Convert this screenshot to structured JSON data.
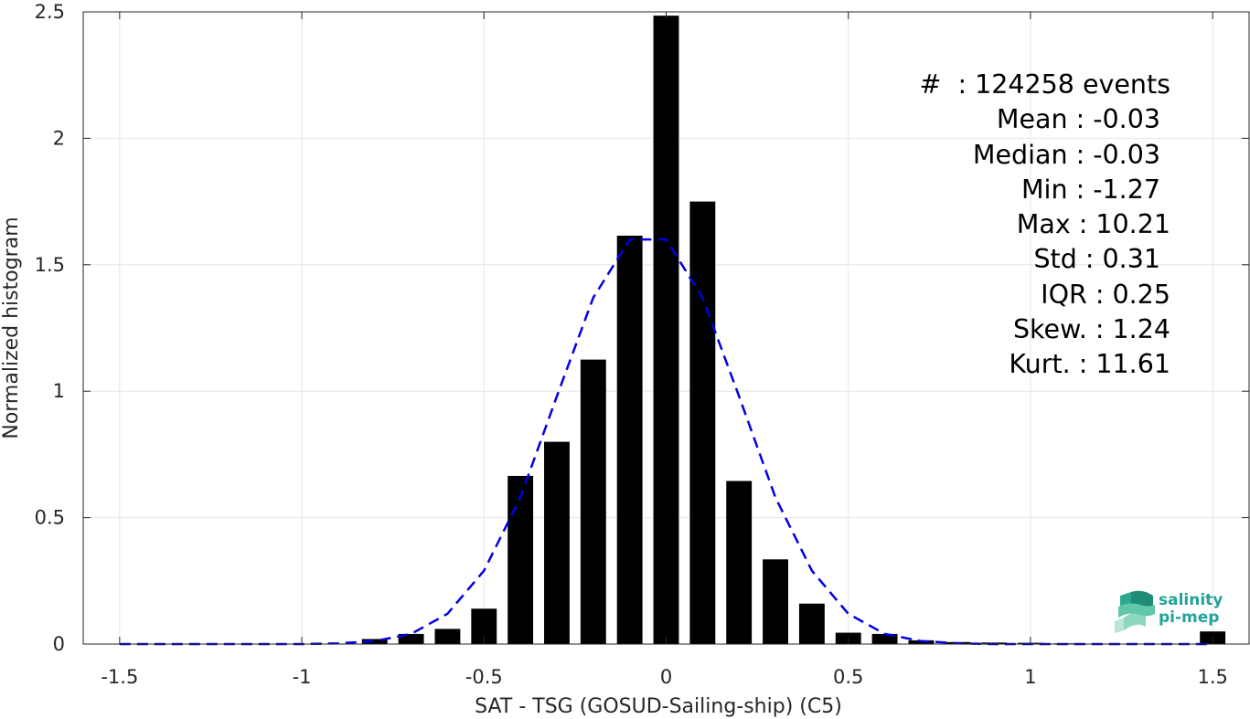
{
  "chart_data": {
    "type": "bar",
    "xlabel": "SAT - TSG (GOSUD-Sailing-ship) (C5)",
    "ylabel": "Normalized histogram",
    "xlim": [
      -1.6,
      1.6
    ],
    "ylim": [
      0,
      2.5
    ],
    "xticks": [
      -1.5,
      -1,
      -0.5,
      0,
      0.5,
      1,
      1.5
    ],
    "xtick_labels": [
      "-1.5",
      "-1",
      "-0.5",
      "0",
      "0.5",
      "1",
      "1.5"
    ],
    "yticks": [
      0,
      0.5,
      1,
      1.5,
      2,
      2.5
    ],
    "ytick_labels": [
      "0",
      "0.5",
      "1",
      "1.5",
      "2",
      "2.5"
    ],
    "grid": true,
    "bar_color": "#000000",
    "bar_width": 0.07,
    "bars": {
      "x": [
        -1.5,
        -1.4,
        -1.3,
        -1.2,
        -1.1,
        -1.0,
        -0.9,
        -0.8,
        -0.7,
        -0.6,
        -0.5,
        -0.4,
        -0.3,
        -0.2,
        -0.1,
        0.0,
        0.1,
        0.2,
        0.3,
        0.4,
        0.5,
        0.6,
        0.7,
        0.8,
        0.9,
        1.0,
        1.1,
        1.2,
        1.3,
        1.4,
        1.5
      ],
      "values": [
        0,
        0,
        0,
        0,
        0,
        0,
        0.002,
        0.02,
        0.04,
        0.06,
        0.14,
        0.665,
        0.8,
        1.125,
        1.615,
        2.485,
        1.75,
        0.645,
        0.335,
        0.16,
        0.045,
        0.04,
        0.015,
        0.008,
        0.006,
        0.005,
        0.003,
        0.002,
        0.002,
        0.002,
        0.05
      ]
    },
    "fit_curve": {
      "style": "dashed",
      "color": "#0000e6",
      "x": [
        -1.5,
        -1.4,
        -1.3,
        -1.2,
        -1.1,
        -1.0,
        -0.9,
        -0.8,
        -0.7,
        -0.6,
        -0.5,
        -0.4,
        -0.3,
        -0.2,
        -0.1,
        0.0,
        0.1,
        0.2,
        0.3,
        0.4,
        0.5,
        0.6,
        0.7,
        0.8,
        0.9,
        1.0,
        1.1,
        1.2,
        1.3,
        1.4,
        1.5
      ],
      "y": [
        0,
        0,
        0,
        0,
        0,
        0,
        0.003,
        0.012,
        0.04,
        0.12,
        0.29,
        0.58,
        0.98,
        1.37,
        1.6,
        1.6,
        1.37,
        0.98,
        0.58,
        0.29,
        0.12,
        0.04,
        0.012,
        0.003,
        0,
        0,
        0,
        0,
        0,
        0,
        0
      ]
    }
  },
  "stats": {
    "count": "#  : 124258 events",
    "mean": "Mean : -0.03",
    "median": "Median : -0.03",
    "min": "Min : -1.27",
    "max": "Max : 10.21",
    "std": "Std : 0.31",
    "iqr": "IQR : 0.25",
    "skew": "Skew. : 1.24",
    "kurt": "Kurt. : 11.61"
  },
  "logo": {
    "line1": "salinity",
    "line2": "pi-mep",
    "color": "#22a39a"
  }
}
